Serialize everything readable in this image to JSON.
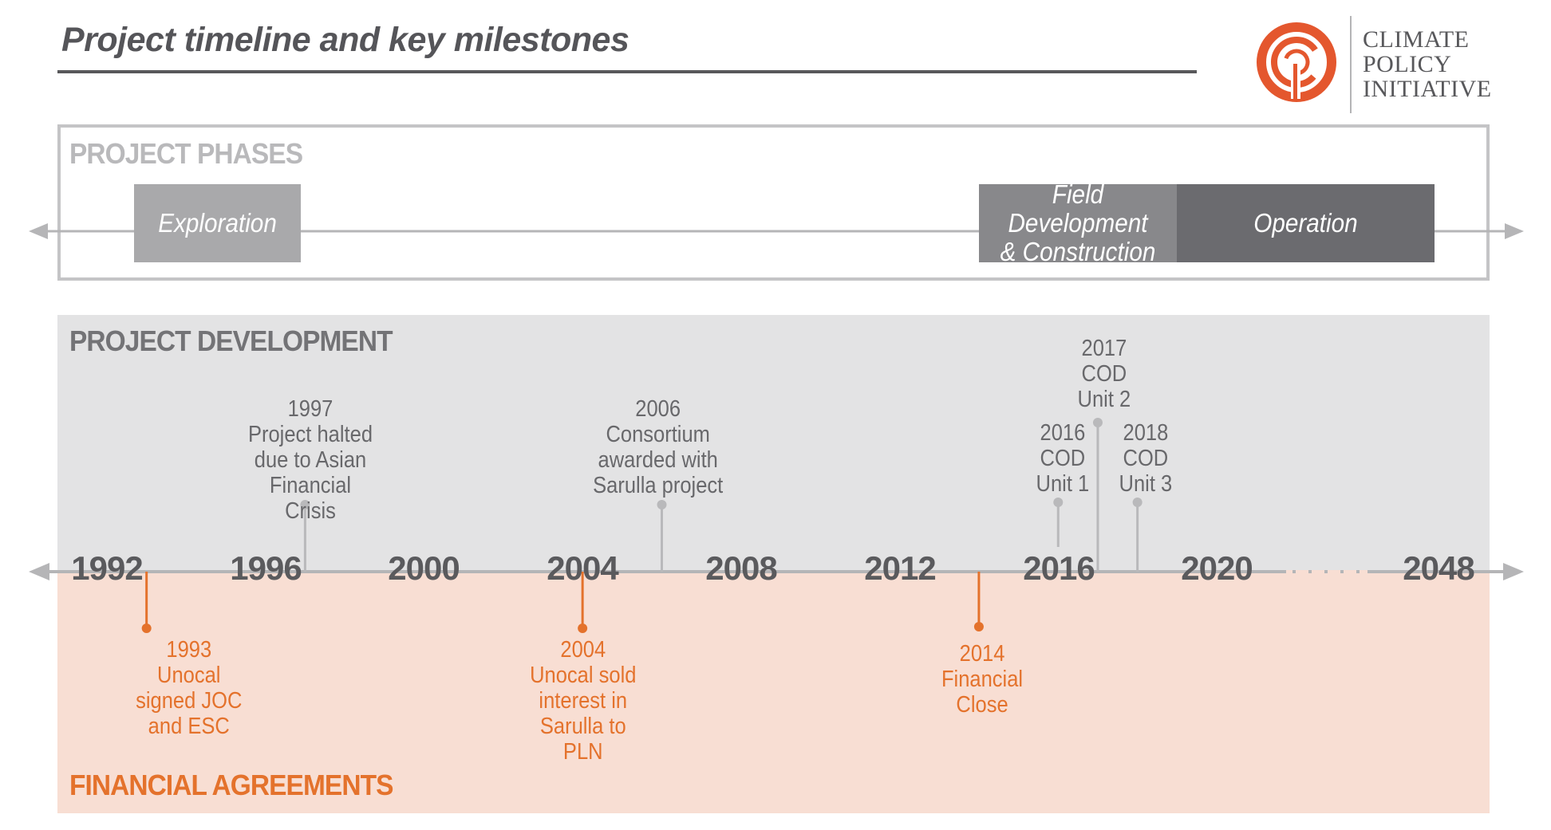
{
  "title": "Project timeline and key milestones",
  "logo": {
    "lines": [
      "CLIMATE",
      "POLICY",
      "INITIATIVE"
    ]
  },
  "sections": {
    "phases": "PROJECT PHASES",
    "development": "PROJECT DEVELOPMENT",
    "financial": "FINANCIAL AGREEMENTS"
  },
  "phases": [
    {
      "label": "Exploration"
    },
    {
      "label": "Field Development\n& Construction"
    },
    {
      "label": "Operation"
    }
  ],
  "axis": {
    "years": [
      "1992",
      "1996",
      "2000",
      "2004",
      "2008",
      "2012",
      "2016",
      "2020",
      "2048"
    ]
  },
  "development_events": [
    {
      "year": 1997,
      "text": "1997\nProject halted\ndue to Asian\nFinancial Crisis"
    },
    {
      "year": 2006,
      "text": "2006\nConsortium\nawarded with\nSarulla project"
    },
    {
      "year": 2016,
      "text": "2016\nCOD\nUnit 1"
    },
    {
      "year": 2017,
      "text": "2017\nCOD\nUnit 2"
    },
    {
      "year": 2018,
      "text": "2018\nCOD\nUnit 3"
    }
  ],
  "financial_events": [
    {
      "year": 1993,
      "text": "1993\nUnocal\nsigned JOC\nand ESC"
    },
    {
      "year": 2004,
      "text": "2004\nUnocal sold\ninterest in\nSarulla to\nPLN"
    },
    {
      "year": 2014,
      "text": "2014\nFinancial\nClose"
    }
  ],
  "colors": {
    "development": "#b9b9bb",
    "financial": "#e4722c",
    "axis": "#b5b5b7",
    "logo": "#e4572e"
  }
}
